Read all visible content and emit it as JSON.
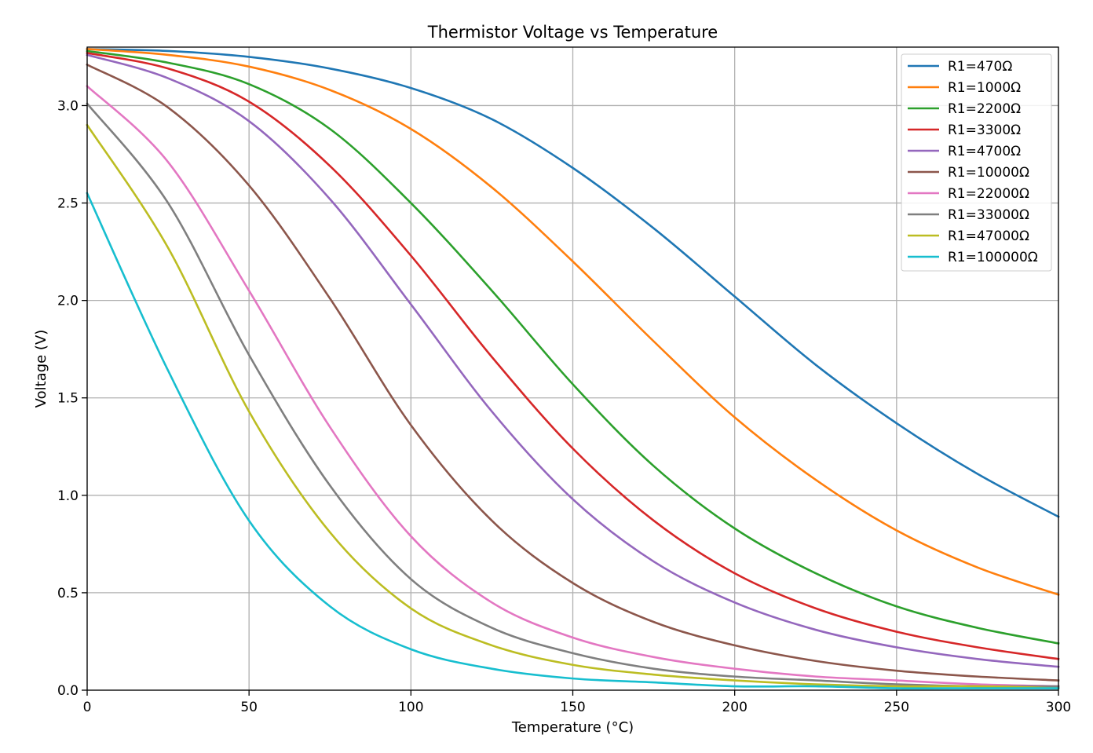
{
  "chart_data": {
    "type": "line",
    "title": "Thermistor Voltage vs Temperature",
    "xlabel": "Temperature (°C)",
    "ylabel": "Voltage (V)",
    "xlim": [
      0,
      300
    ],
    "ylim": [
      0,
      3.3
    ],
    "xticks": [
      0,
      50,
      100,
      150,
      200,
      250,
      300
    ],
    "yticks": [
      0.0,
      0.5,
      1.0,
      1.5,
      2.0,
      2.5,
      3.0
    ],
    "xtick_labels": [
      "0",
      "50",
      "100",
      "150",
      "200",
      "250",
      "300"
    ],
    "ytick_labels": [
      "0.0",
      "0.5",
      "1.0",
      "1.5",
      "2.0",
      "2.5",
      "3.0"
    ],
    "grid": true,
    "legend_position": "top-right",
    "x": [
      0,
      25,
      50,
      75,
      100,
      125,
      150,
      175,
      200,
      225,
      250,
      275,
      300
    ],
    "series": [
      {
        "name": "R1=470Ω",
        "color": "#1f77b4",
        "values": [
          3.29,
          3.28,
          3.25,
          3.19,
          3.09,
          2.93,
          2.68,
          2.37,
          2.02,
          1.67,
          1.37,
          1.11,
          0.89
        ]
      },
      {
        "name": "R1=1000Ω",
        "color": "#ff7f0e",
        "values": [
          3.29,
          3.26,
          3.2,
          3.08,
          2.88,
          2.58,
          2.2,
          1.79,
          1.4,
          1.08,
          0.82,
          0.63,
          0.49
        ]
      },
      {
        "name": "R1=2200Ω",
        "color": "#2ca02c",
        "values": [
          3.28,
          3.22,
          3.11,
          2.88,
          2.5,
          2.05,
          1.57,
          1.15,
          0.83,
          0.6,
          0.43,
          0.32,
          0.24
        ]
      },
      {
        "name": "R1=3300Ω",
        "color": "#d62728",
        "values": [
          3.27,
          3.19,
          3.02,
          2.69,
          2.23,
          1.71,
          1.24,
          0.87,
          0.6,
          0.42,
          0.3,
          0.22,
          0.16
        ]
      },
      {
        "name": "R1=4700Ω",
        "color": "#9467bd",
        "values": [
          3.26,
          3.14,
          2.92,
          2.52,
          1.98,
          1.43,
          0.98,
          0.66,
          0.45,
          0.31,
          0.22,
          0.16,
          0.12
        ]
      },
      {
        "name": "R1=10000Ω",
        "color": "#8c564b",
        "values": [
          3.21,
          2.99,
          2.59,
          2.01,
          1.36,
          0.87,
          0.55,
          0.35,
          0.23,
          0.15,
          0.1,
          0.07,
          0.05
        ]
      },
      {
        "name": "R1=22000Ω",
        "color": "#e377c2",
        "values": [
          3.1,
          2.71,
          2.05,
          1.35,
          0.79,
          0.45,
          0.27,
          0.17,
          0.11,
          0.07,
          0.05,
          0.03,
          0.02
        ]
      },
      {
        "name": "R1=33000Ω",
        "color": "#7f7f7f",
        "values": [
          3.01,
          2.5,
          1.72,
          1.05,
          0.57,
          0.32,
          0.19,
          0.11,
          0.07,
          0.05,
          0.03,
          0.02,
          0.02
        ]
      },
      {
        "name": "R1=47000Ω",
        "color": "#bcbd22",
        "values": [
          2.9,
          2.27,
          1.43,
          0.81,
          0.42,
          0.23,
          0.13,
          0.08,
          0.05,
          0.03,
          0.02,
          0.02,
          0.01
        ]
      },
      {
        "name": "R1=100000Ω",
        "color": "#17becf",
        "values": [
          2.55,
          1.64,
          0.87,
          0.43,
          0.21,
          0.11,
          0.06,
          0.04,
          0.02,
          0.02,
          0.01,
          0.01,
          0.01
        ]
      }
    ]
  }
}
